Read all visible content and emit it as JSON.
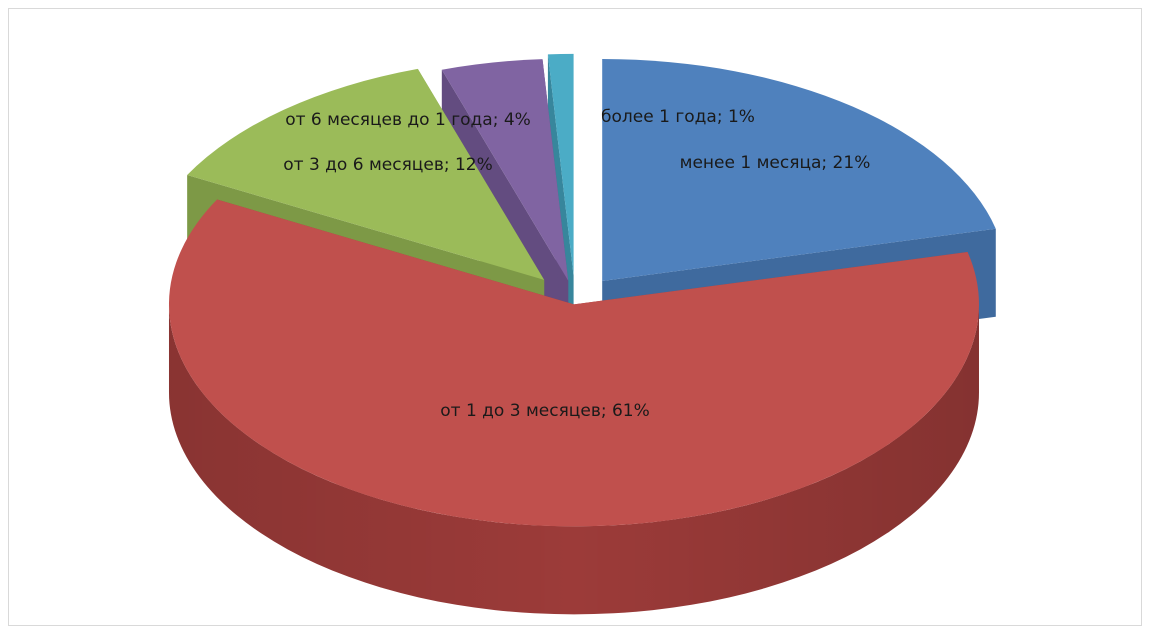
{
  "chart_data": {
    "type": "pie",
    "title": "",
    "style": "3d-exploded",
    "legend": "none",
    "slices": [
      {
        "name": "менее 1 месяца",
        "value": 21,
        "label": "менее 1 месяца; 21%",
        "color": "#4f81bd",
        "side_color": "#3f6a9e"
      },
      {
        "name": "от 1 до 3 месяцев",
        "value": 61,
        "label": "от 1 до 3 месяцев; 61%",
        "color": "#c0504d",
        "side_color": "#9c3b39"
      },
      {
        "name": "от 3 до 6 месяцев",
        "value": 12,
        "label": "от 3 до 6 месяцев; 12%",
        "color": "#9bbb59",
        "side_color": "#7d9946"
      },
      {
        "name": "от 6 месяцев до 1 года",
        "value": 4,
        "label": "от 6 месяцев до 1 года; 4%",
        "color": "#8064a2",
        "side_color": "#634c80"
      },
      {
        "name": "более 1 года",
        "value": 1,
        "label": "более 1 года; 1%",
        "color": "#4bacc6",
        "side_color": "#37869c"
      }
    ]
  }
}
